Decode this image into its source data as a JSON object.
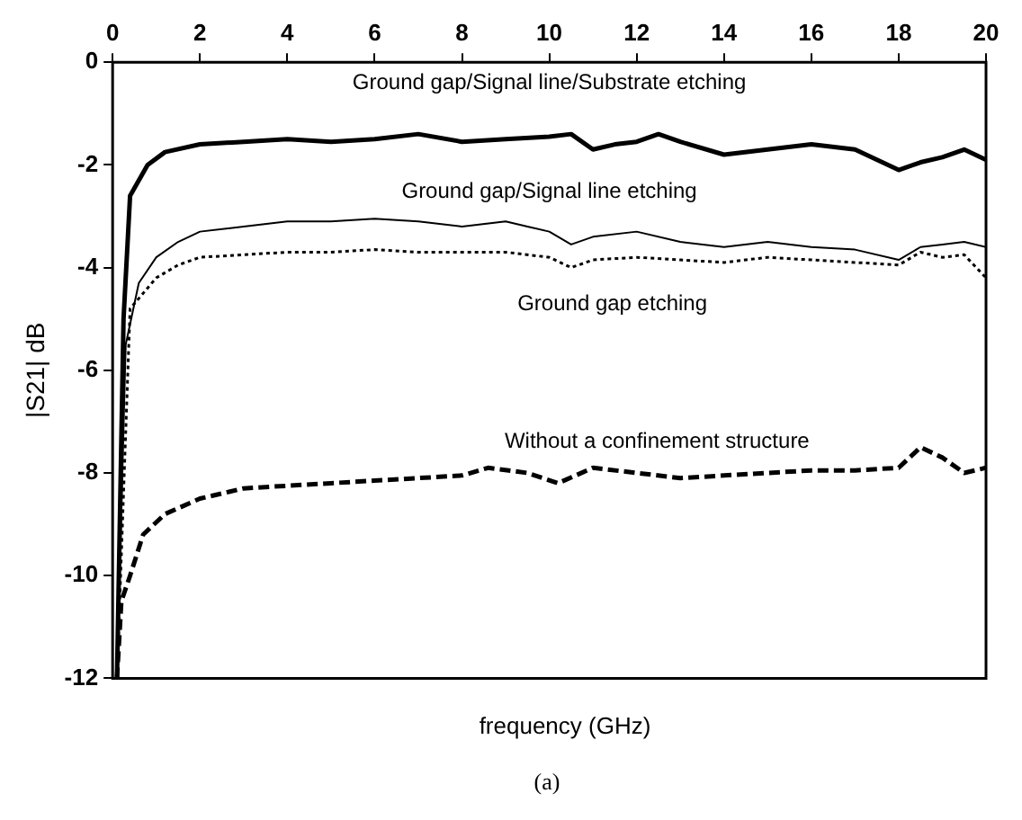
{
  "chart_data": {
    "type": "line",
    "xlabel": "frequency (GHz)",
    "ylabel": "|S21| dB",
    "xlim": [
      0,
      20
    ],
    "xticks": [
      0,
      2,
      4,
      6,
      8,
      10,
      12,
      14,
      16,
      18,
      20
    ],
    "ylim": [
      -12,
      0
    ],
    "yticks": [
      -12,
      -10,
      -8,
      -6,
      -4,
      -2,
      0
    ],
    "grid": false,
    "legend": false,
    "marker": "none",
    "series": [
      {
        "name": "Ground gap/Signal line/Substrate etching",
        "color": "#000000",
        "line_style": "solid",
        "x": [
          0.1,
          0.25,
          0.4,
          0.8,
          1.2,
          2,
          3,
          4,
          5,
          6,
          7,
          8,
          9,
          10,
          10.5,
          11,
          11.5,
          12,
          12.5,
          13,
          14,
          15,
          16,
          17,
          18,
          18.5,
          19,
          19.5,
          20
        ],
        "values": [
          -12,
          -5,
          -2.6,
          -2,
          -1.75,
          -1.6,
          -1.55,
          -1.5,
          -1.55,
          -1.5,
          -1.4,
          -1.55,
          -1.5,
          -1.45,
          -1.4,
          -1.7,
          -1.6,
          -1.55,
          -1.4,
          -1.55,
          -1.8,
          -1.7,
          -1.6,
          -1.7,
          -2.1,
          -1.95,
          -1.85,
          -1.7,
          -1.9
        ]
      },
      {
        "name": "Ground gap/Signal line etching",
        "color": "#000000",
        "line_style": "solid",
        "x": [
          0.1,
          0.3,
          0.6,
          1,
          1.5,
          2,
          3,
          4,
          5,
          6,
          7,
          8,
          9,
          9.5,
          10,
          10.5,
          11,
          12,
          13,
          14,
          15,
          16,
          17,
          18,
          18.5,
          19,
          19.5,
          20
        ],
        "values": [
          -12,
          -5.5,
          -4.3,
          -3.8,
          -3.5,
          -3.3,
          -3.2,
          -3.1,
          -3.1,
          -3.05,
          -3.1,
          -3.2,
          -3.1,
          -3.2,
          -3.3,
          -3.55,
          -3.4,
          -3.3,
          -3.5,
          -3.6,
          -3.5,
          -3.6,
          -3.65,
          -3.85,
          -3.6,
          -3.55,
          -3.5,
          -3.6
        ]
      },
      {
        "name": "Ground gap etching",
        "color": "#000000",
        "line_style": "dotted",
        "x": [
          0.1,
          0.4,
          0.7,
          1,
          1.5,
          2,
          3,
          4,
          5,
          6,
          7,
          8,
          9,
          10,
          10.5,
          11,
          12,
          13,
          14,
          15,
          16,
          17,
          18,
          18.5,
          19,
          19.5,
          20
        ],
        "values": [
          -12,
          -4.8,
          -4.5,
          -4.2,
          -3.95,
          -3.8,
          -3.75,
          -3.7,
          -3.7,
          -3.65,
          -3.7,
          -3.7,
          -3.7,
          -3.8,
          -4.0,
          -3.85,
          -3.8,
          -3.85,
          -3.9,
          -3.8,
          -3.85,
          -3.9,
          -3.95,
          -3.7,
          -3.8,
          -3.75,
          -4.2
        ]
      },
      {
        "name": "Without a confinement structure",
        "color": "#000000",
        "line_style": "dashed",
        "x": [
          0.1,
          0.2,
          0.4,
          0.7,
          1.2,
          2,
          3,
          4,
          5,
          6,
          7,
          8,
          8.6,
          9.5,
          10.2,
          11,
          12,
          13,
          14,
          15,
          16,
          17,
          18,
          18.5,
          19,
          19.5,
          20
        ],
        "values": [
          -12,
          -10.5,
          -10,
          -9.2,
          -8.8,
          -8.5,
          -8.3,
          -8.25,
          -8.2,
          -8.15,
          -8.1,
          -8.05,
          -7.9,
          -8.0,
          -8.2,
          -7.9,
          -8.0,
          -8.1,
          -8.05,
          -8.0,
          -7.95,
          -7.95,
          -7.9,
          -7.5,
          -7.7,
          -8.0,
          -7.9
        ]
      }
    ],
    "annotations": [
      "(a)"
    ]
  }
}
